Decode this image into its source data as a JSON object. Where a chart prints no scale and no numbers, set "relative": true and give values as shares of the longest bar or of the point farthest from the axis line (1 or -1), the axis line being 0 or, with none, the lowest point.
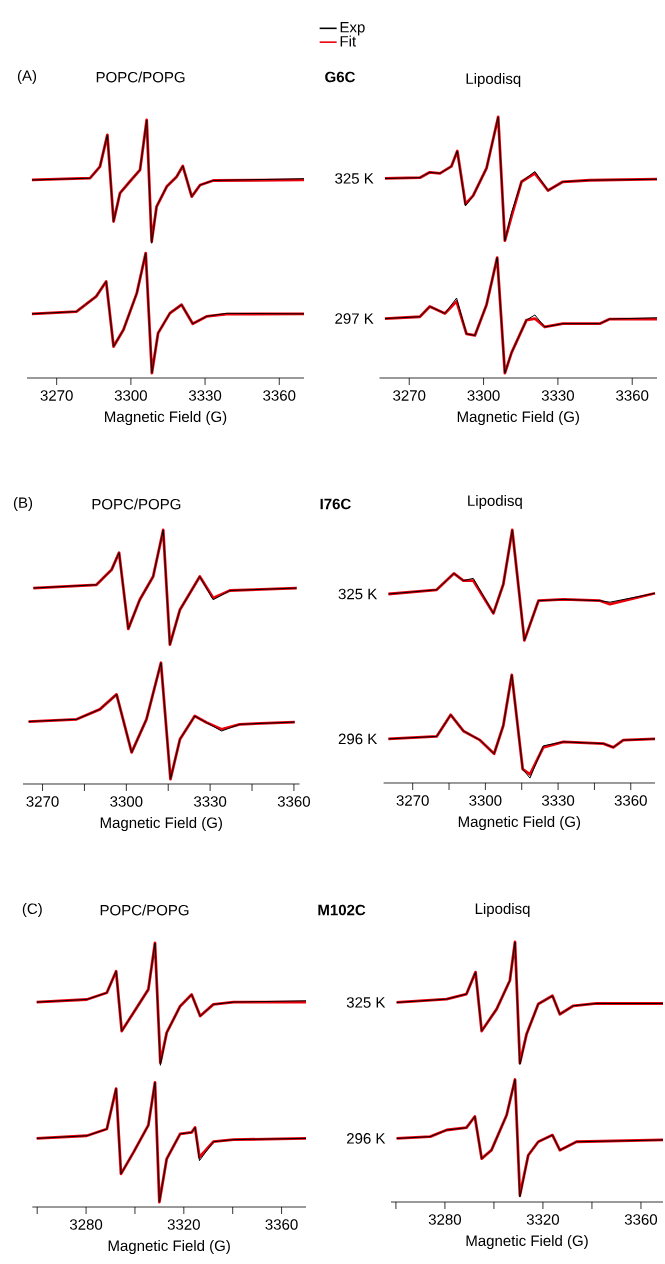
{
  "chart_data": [
    {
      "type": "line",
      "relative": true,
      "title": "POPC/POPG",
      "xlabel": "Magnetic Field (G)",
      "annotations": [
        "(A)",
        "G6C"
      ],
      "legend": "top right",
      "xlim": [
        3258,
        3370
      ],
      "xticks": [
        3270,
        3300,
        3330,
        3360
      ],
      "series": [
        {
          "name": "Exp",
          "color": "#000000",
          "x": [
            3260,
            3283.5,
            3287.5,
            3290.5,
            3293,
            3295.6,
            3299.6,
            3303.7,
            3306.4,
            3308.4,
            3310.4,
            3314.5,
            3318.5,
            3321,
            3324.6,
            3328,
            3333.3,
            3370
          ],
          "values": [
            0.763,
            0.77,
            0.816,
            0.941,
            0.599,
            0.711,
            0.757,
            0.803,
            1.0,
            0.513,
            0.658,
            0.737,
            0.776,
            0.818,
            0.697,
            0.743,
            0.761,
            0.768
          ]
        },
        {
          "name": "Fit",
          "color": "#e8000b",
          "x": [
            3260,
            3283.5,
            3287.5,
            3290.5,
            3293,
            3295.6,
            3299.6,
            3303.7,
            3306.4,
            3308.4,
            3310.4,
            3314.5,
            3318.5,
            3321,
            3324.6,
            3328,
            3333.3,
            3370
          ],
          "values": [
            0.763,
            0.77,
            0.816,
            0.941,
            0.599,
            0.711,
            0.757,
            0.803,
            1.0,
            0.52,
            0.658,
            0.737,
            0.776,
            0.818,
            0.697,
            0.743,
            0.761,
            0.763
          ]
        },
        {
          "color": "#000000",
          "x": [
            3260,
            3278,
            3286,
            3290,
            3293,
            3297,
            3302.4,
            3306,
            3308.5,
            3311,
            3315.8,
            3320.5,
            3325,
            3330.6,
            3338.7,
            3370
          ],
          "values": [
            0.234,
            0.243,
            0.303,
            0.362,
            0.105,
            0.171,
            0.316,
            0.474,
            0,
            0.158,
            0.237,
            0.27,
            0.195,
            0.224,
            0.236,
            0.234
          ]
        },
        {
          "color": "#e8000b",
          "x": [
            3260,
            3278,
            3286,
            3290,
            3293,
            3297,
            3302.4,
            3306,
            3308.5,
            3311,
            3315.8,
            3320.5,
            3325,
            3330.6,
            3338.7,
            3370
          ],
          "values": [
            0.234,
            0.243,
            0.303,
            0.362,
            0.105,
            0.171,
            0.316,
            0.474,
            0,
            0.158,
            0.237,
            0.27,
            0.195,
            0.224,
            0.233,
            0.234
          ]
        }
      ]
    },
    {
      "type": "line",
      "relative": true,
      "title": "Lipodisq",
      "xlabel": "Magnetic Field (G)",
      "annotations": [
        {
          "text": "325 K",
          "x": 3260.2,
          "y": 0.76
        },
        {
          "text": "297 K",
          "x": 3260.2,
          "y": 0.213
        }
      ],
      "xlim": [
        3258,
        3370
      ],
      "xticks": [
        3270,
        3300,
        3330,
        3360
      ],
      "series": [
        {
          "color": "#000000",
          "x": [
            3260.2,
            3274.3,
            3278.3,
            3282.4,
            3287,
            3289.4,
            3292.7,
            3295.8,
            3301.2,
            3305.9,
            3308.6,
            3311.3,
            3315.3,
            3320.7,
            3326,
            3332,
            3342.8,
            3370
          ],
          "values": [
            0.76,
            0.763,
            0.784,
            0.78,
            0.807,
            0.867,
            0.653,
            0.693,
            0.8,
            1.0,
            0.517,
            0.627,
            0.747,
            0.787,
            0.713,
            0.747,
            0.753,
            0.757
          ]
        },
        {
          "color": "#e8000b",
          "x": [
            3260.2,
            3274.3,
            3278.3,
            3282.4,
            3287,
            3289.4,
            3292.7,
            3295.8,
            3301.2,
            3305.9,
            3308.6,
            3311.3,
            3315.3,
            3320.7,
            3326,
            3332,
            3342.8,
            3370
          ],
          "values": [
            0.76,
            0.763,
            0.784,
            0.78,
            0.807,
            0.867,
            0.66,
            0.693,
            0.8,
            1.0,
            0.517,
            0.613,
            0.747,
            0.78,
            0.713,
            0.747,
            0.753,
            0.757
          ]
        },
        {
          "color": "#000000",
          "x": [
            3260.2,
            3274.3,
            3278.3,
            3284.4,
            3289.1,
            3293.1,
            3296.5,
            3301.2,
            3305.5,
            3308.6,
            3311.3,
            3317.3,
            3320.7,
            3324.7,
            3332,
            3346.9,
            3350.9,
            3370
          ],
          "values": [
            0.213,
            0.22,
            0.26,
            0.233,
            0.293,
            0.153,
            0.147,
            0.267,
            0.451,
            0,
            0.08,
            0.207,
            0.227,
            0.18,
            0.193,
            0.193,
            0.211,
            0.216
          ]
        },
        {
          "color": "#e8000b",
          "x": [
            3260.2,
            3274.3,
            3278.3,
            3284.4,
            3289.1,
            3293.1,
            3296.5,
            3301.2,
            3305.5,
            3308.6,
            3311.3,
            3317.3,
            3320.7,
            3324.7,
            3332,
            3346.9,
            3350.9,
            3370
          ],
          "values": [
            0.213,
            0.22,
            0.26,
            0.233,
            0.28,
            0.153,
            0.147,
            0.267,
            0.451,
            0,
            0.08,
            0.207,
            0.213,
            0.18,
            0.193,
            0.193,
            0.211,
            0.211
          ]
        }
      ]
    },
    {
      "type": "line",
      "relative": true,
      "title": "POPC/POPG",
      "xlabel": "Magnetic Field (G)",
      "annotations": [
        "(B)",
        "I76C"
      ],
      "xlim": [
        3263,
        3362
      ],
      "xticks": [
        3270,
        {
          "value": 3285,
          "label": null
        },
        3300,
        {
          "value": 3315,
          "label": null
        },
        3330,
        {
          "value": 3345,
          "label": null
        },
        3360
      ],
      "series": [
        {
          "color": "#000000",
          "x": [
            3266.7,
            3289.3,
            3294.7,
            3297.4,
            3300.7,
            3304.8,
            3309.6,
            3313.2,
            3315.6,
            3319.2,
            3326.3,
            3331.1,
            3337.1,
            3361
          ],
          "values": [
            0.767,
            0.78,
            0.84,
            0.909,
            0.603,
            0.72,
            0.813,
            1.0,
            0.54,
            0.68,
            0.813,
            0.72,
            0.757,
            0.767
          ]
        },
        {
          "color": "#e8000b",
          "x": [
            3266.7,
            3289.3,
            3294.7,
            3297.4,
            3300.7,
            3304.8,
            3309.6,
            3313.2,
            3315.6,
            3319.2,
            3326.3,
            3331.1,
            3337.1,
            3361
          ],
          "values": [
            0.767,
            0.78,
            0.84,
            0.909,
            0.603,
            0.72,
            0.813,
            1.0,
            0.54,
            0.68,
            0.813,
            0.727,
            0.757,
            0.767
          ]
        },
        {
          "color": "#000000",
          "x": [
            3265,
            3282.2,
            3290.5,
            3296.5,
            3301.9,
            3307.2,
            3312.4,
            3315.8,
            3319.2,
            3324.5,
            3328.7,
            3334.1,
            3340.6,
            3360.3
          ],
          "values": [
            0.231,
            0.24,
            0.28,
            0.34,
            0.107,
            0.24,
            0.467,
            0,
            0.16,
            0.253,
            0.227,
            0.193,
            0.22,
            0.229
          ]
        },
        {
          "color": "#e8000b",
          "x": [
            3265,
            3282.2,
            3290.5,
            3296.5,
            3301.9,
            3307.2,
            3312.4,
            3315.8,
            3319.2,
            3324.5,
            3328.7,
            3334.1,
            3340.6,
            3360.3
          ],
          "values": [
            0.231,
            0.24,
            0.28,
            0.34,
            0.107,
            0.24,
            0.467,
            0,
            0.16,
            0.253,
            0.227,
            0.2,
            0.22,
            0.229
          ]
        }
      ]
    },
    {
      "type": "line",
      "relative": true,
      "title": "Lipodisq",
      "xlabel": "Magnetic Field (G)",
      "annotations": [
        {
          "text": "325 K",
          "x": 3260,
          "y": 0.742
        },
        {
          "text": "296 K",
          "x": 3260,
          "y": 0.158
        }
      ],
      "xlim": [
        3258,
        3370
      ],
      "xticks": [
        3270,
        {
          "value": 3285,
          "label": null
        },
        3300,
        {
          "value": 3315,
          "label": null
        },
        3330,
        {
          "value": 3345,
          "label": null
        },
        3360
      ],
      "series": [
        {
          "color": "#000000",
          "x": [
            3260,
            3279.9,
            3287,
            3290.9,
            3295,
            3303.3,
            3307.4,
            3311.1,
            3316.1,
            3321.9,
            3332.2,
            3347.3,
            3351.4,
            3370
          ],
          "values": [
            0.742,
            0.759,
            0.825,
            0.796,
            0.805,
            0.664,
            0.781,
            1.0,
            0.555,
            0.715,
            0.72,
            0.715,
            0.709,
            0.745
          ]
        },
        {
          "color": "#e8000b",
          "x": [
            3260,
            3279.9,
            3287,
            3290.9,
            3295,
            3303.3,
            3307.4,
            3311.1,
            3316.1,
            3321.9,
            3332.2,
            3347.3,
            3351.4,
            3370
          ],
          "values": [
            0.742,
            0.759,
            0.825,
            0.796,
            0.796,
            0.664,
            0.781,
            1.0,
            0.555,
            0.715,
            0.72,
            0.715,
            0.701,
            0.745
          ]
        },
        {
          "color": "#000000",
          "x": [
            3260,
            3279.9,
            3285.7,
            3290.9,
            3297.8,
            3303.6,
            3307.4,
            3310.9,
            3315.4,
            3318.4,
            3323.9,
            3332.2,
            3348.7,
            3352.8,
            3356.9,
            3370
          ],
          "values": [
            0.158,
            0.168,
            0.255,
            0.19,
            0.153,
            0.098,
            0.212,
            0.416,
            0.036,
            0,
            0.13,
            0.146,
            0.139,
            0.124,
            0.153,
            0.158
          ]
        },
        {
          "color": "#e8000b",
          "x": [
            3260,
            3279.9,
            3285.7,
            3290.9,
            3297.8,
            3303.6,
            3307.4,
            3310.9,
            3315.4,
            3318.4,
            3323.9,
            3332.2,
            3348.7,
            3352.8,
            3356.9,
            3370
          ],
          "values": [
            0.158,
            0.168,
            0.255,
            0.19,
            0.153,
            0.098,
            0.212,
            0.416,
            0.036,
            0.015,
            0.124,
            0.146,
            0.139,
            0.124,
            0.153,
            0.158
          ]
        }
      ]
    },
    {
      "type": "line",
      "relative": true,
      "title": "POPC/POPG",
      "xlabel": "Magnetic Field (G)",
      "annotations": [
        "(C)",
        "M102C"
      ],
      "xlim": [
        3258,
        3370
      ],
      "xticks": [
        {
          "value": 3260,
          "label": null
        },
        3280,
        {
          "value": 3300,
          "label": null
        },
        3320,
        {
          "value": 3340,
          "label": null
        },
        3360
      ],
      "series": [
        {
          "color": "#000000",
          "x": [
            3259.8,
            3280.3,
            3288.5,
            3292.3,
            3294.6,
            3299.4,
            3305.5,
            3308.2,
            3310.4,
            3313,
            3318.5,
            3323.2,
            3326.7,
            3332.1,
            3340.3,
            3370
          ],
          "values": [
            0.772,
            0.782,
            0.808,
            0.891,
            0.66,
            0.731,
            0.821,
            1.0,
            0.528,
            0.654,
            0.756,
            0.801,
            0.718,
            0.763,
            0.772,
            0.777
          ]
        },
        {
          "color": "#e8000b",
          "x": [
            3259.8,
            3280.3,
            3288.5,
            3292.3,
            3294.6,
            3299.4,
            3305.5,
            3308.2,
            3310.4,
            3313,
            3318.5,
            3323.2,
            3326.7,
            3332.1,
            3340.3,
            3370
          ],
          "values": [
            0.772,
            0.782,
            0.808,
            0.891,
            0.66,
            0.731,
            0.821,
            1.0,
            0.538,
            0.654,
            0.756,
            0.801,
            0.718,
            0.763,
            0.772,
            0.772
          ]
        },
        {
          "color": "#000000",
          "x": [
            3259.8,
            3280.3,
            3288.5,
            3292.3,
            3294.3,
            3299.4,
            3305.5,
            3308.2,
            3310,
            3313,
            3318.5,
            3323.2,
            3324.6,
            3326.4,
            3332.1,
            3340.3,
            3370
          ],
          "values": [
            0.246,
            0.256,
            0.282,
            0.438,
            0.109,
            0.192,
            0.297,
            0.462,
            0,
            0.167,
            0.263,
            0.269,
            0.288,
            0.16,
            0.233,
            0.241,
            0.246
          ]
        },
        {
          "color": "#e8000b",
          "x": [
            3259.8,
            3280.3,
            3288.5,
            3292.3,
            3294.3,
            3299.4,
            3305.5,
            3308.2,
            3310,
            3313,
            3318.5,
            3323.2,
            3324.6,
            3326.4,
            3332.1,
            3340.3,
            3370
          ],
          "values": [
            0.246,
            0.256,
            0.282,
            0.438,
            0.109,
            0.192,
            0.297,
            0.462,
            0,
            0.167,
            0.263,
            0.269,
            0.288,
            0.173,
            0.233,
            0.241,
            0.246
          ]
        }
      ]
    },
    {
      "type": "line",
      "relative": true,
      "title": "Lipodisq",
      "xlabel": "Magnetic Field (G)",
      "annotations": [
        {
          "text": "325 K",
          "x": 3260.3,
          "y": 0.763
        },
        {
          "text": "296 K",
          "x": 3260.3,
          "y": 0.23
        }
      ],
      "xlim": [
        3258,
        3369
      ],
      "xticks": [
        {
          "value": 3260,
          "label": null
        },
        3280,
        {
          "value": 3300,
          "label": null
        },
        3320,
        {
          "value": 3340,
          "label": null
        },
        3360
      ],
      "series": [
        {
          "color": "#000000",
          "x": [
            3260.3,
            3280.7,
            3288.8,
            3292.5,
            3295,
            3301.1,
            3306.5,
            3308.6,
            3310.6,
            3313.3,
            3318.1,
            3323.9,
            3326.9,
            3332.4,
            3341.9,
            3369
          ],
          "values": [
            0.763,
            0.776,
            0.796,
            0.882,
            0.651,
            0.737,
            0.849,
            1.0,
            0.52,
            0.638,
            0.757,
            0.789,
            0.717,
            0.75,
            0.759,
            0.759
          ]
        },
        {
          "color": "#e8000b",
          "x": [
            3260.3,
            3280.7,
            3288.8,
            3292.5,
            3295,
            3301.1,
            3306.5,
            3308.6,
            3310.6,
            3313.3,
            3318.1,
            3323.9,
            3326.9,
            3332.4,
            3341.9,
            3369
          ],
          "values": [
            0.763,
            0.776,
            0.796,
            0.882,
            0.651,
            0.737,
            0.849,
            1.0,
            0.526,
            0.638,
            0.757,
            0.789,
            0.717,
            0.75,
            0.759,
            0.759
          ]
        },
        {
          "color": "#000000",
          "x": [
            3260.3,
            3274,
            3280.7,
            3288.8,
            3292.2,
            3295,
            3299,
            3305.2,
            3308.6,
            3310.6,
            3314,
            3318.1,
            3323.9,
            3326.9,
            3333.7,
            3369
          ],
          "values": [
            0.23,
            0.237,
            0.263,
            0.272,
            0.316,
            0.151,
            0.184,
            0.322,
            0.461,
            0,
            0.164,
            0.217,
            0.243,
            0.184,
            0.217,
            0.224
          ]
        },
        {
          "color": "#e8000b",
          "x": [
            3260.3,
            3274,
            3280.7,
            3288.8,
            3292.2,
            3295,
            3299,
            3305.2,
            3308.6,
            3310.6,
            3314,
            3318.1,
            3323.9,
            3326.9,
            3333.7,
            3369
          ],
          "values": [
            0.23,
            0.237,
            0.263,
            0.272,
            0.316,
            0.151,
            0.184,
            0.322,
            0.461,
            0.007,
            0.164,
            0.217,
            0.243,
            0.184,
            0.217,
            0.224
          ]
        }
      ]
    }
  ]
}
